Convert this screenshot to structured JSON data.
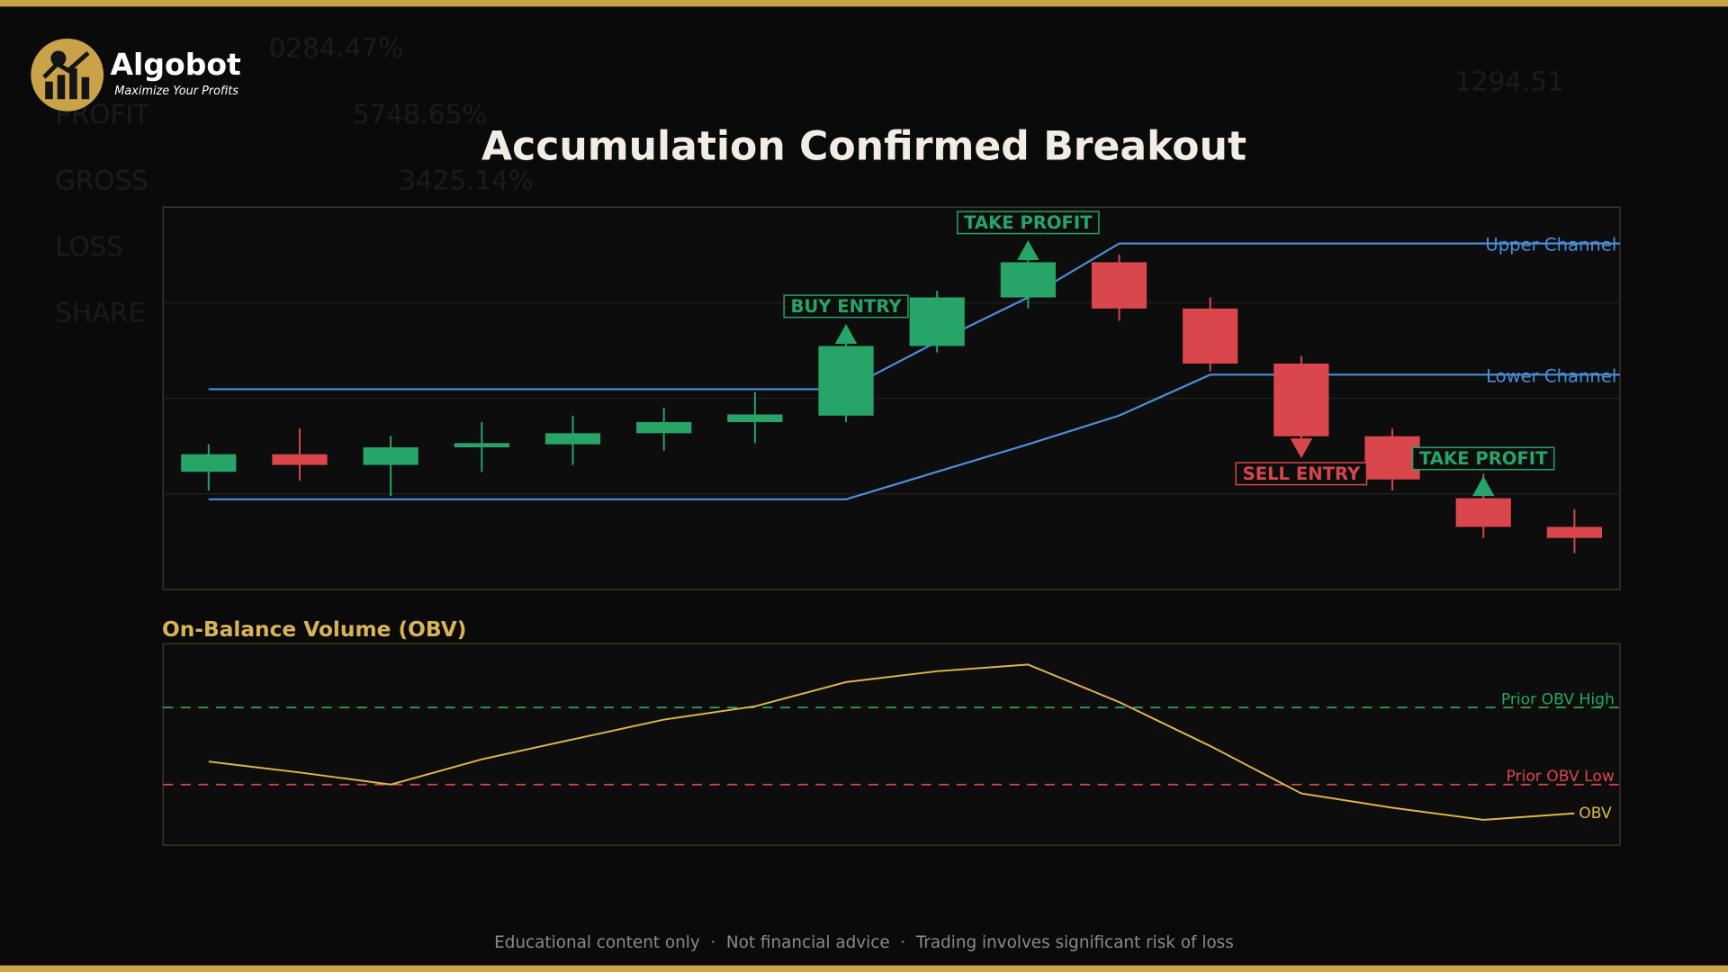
{
  "header": {
    "brand": "Algobot",
    "tagline": "Maximize Your Profits"
  },
  "background": {
    "ghost_texts": [
      "0284.47%",
      "PROFIT",
      "5748.65%",
      "GROSS",
      "3425.14%",
      "LOSS",
      "SHARE",
      "1294.51"
    ]
  },
  "chart_data": [
    {
      "type": "candlestick",
      "title": "Accumulation Confirmed Breakout",
      "open": [
        30.8,
        35.4,
        32.6,
        37.2,
        38.0,
        40.9,
        43.8,
        45.5,
        63.7,
        76.4,
        85.6,
        73.5,
        59.1,
        40.1,
        23.9,
        16.4
      ],
      "high": [
        38.0,
        42.1,
        40.1,
        43.8,
        45.5,
        47.6,
        51.6,
        64.8,
        78.1,
        88.5,
        87.6,
        76.4,
        61.1,
        42.1,
        30.3,
        21.0
      ],
      "low": [
        25.9,
        28.5,
        24.5,
        30.8,
        32.6,
        36.3,
        38.3,
        43.8,
        62.0,
        73.5,
        70.3,
        57.1,
        38.0,
        25.9,
        13.5,
        9.5
      ],
      "close": [
        35.4,
        32.6,
        37.2,
        38.3,
        40.9,
        43.8,
        45.8,
        63.7,
        76.4,
        85.6,
        73.5,
        59.1,
        40.1,
        28.8,
        16.4,
        13.5
      ],
      "up_color": "#27a468",
      "down_color": "#d9464b",
      "lines": [
        {
          "name": "Upper Channel",
          "color": "#4a8fdc",
          "values": [
            52.4,
            52.4,
            52.4,
            52.4,
            52.4,
            52.4,
            52.4,
            52.4,
            64.8,
            76.4,
            90.5,
            90.5,
            90.5,
            90.5,
            90.5,
            90.5
          ]
        },
        {
          "name": "Lower Channel",
          "color": "#4a8fdc",
          "values": [
            23.6,
            23.6,
            23.6,
            23.6,
            23.6,
            23.6,
            23.6,
            23.6,
            30.8,
            38.0,
            45.5,
            56.2,
            56.2,
            56.2,
            56.2,
            56.2
          ]
        }
      ],
      "signals": [
        null,
        null,
        null,
        null,
        null,
        null,
        null,
        "BUY ENTRY",
        null,
        "TAKE PROFIT",
        null,
        null,
        "SELL ENTRY",
        null,
        "TAKE PROFIT",
        null
      ],
      "signal_colors": [
        null,
        null,
        null,
        null,
        null,
        null,
        null,
        "#27a468",
        null,
        "#27a468",
        null,
        null,
        "#d9464b",
        null,
        "#27a468",
        null
      ],
      "ylim": [
        0,
        100
      ],
      "yticks": [
        25,
        50,
        75
      ],
      "grid": true
    },
    {
      "type": "line",
      "title": "On-Balance Volume (OBV)",
      "series": [
        {
          "name": "OBV",
          "color": "#e0b64a",
          "values": [
            41.5,
            36.1,
            30.1,
            42.6,
            52.5,
            62.3,
            68.9,
            80.9,
            86.3,
            89.6,
            71.0,
            49.2,
            25.7,
            18.6,
            12.6,
            15.8
          ]
        }
      ],
      "levels": [
        {
          "name": "Prior OBV High",
          "value": 68.3,
          "color": "#27a468"
        },
        {
          "name": "Prior OBV Low",
          "value": 30.1,
          "color": "#d9464b"
        }
      ],
      "ylim": [
        0,
        100
      ]
    }
  ],
  "footer": "Educational content only  ·  Not financial advice  ·  Trading involves significant risk of loss"
}
